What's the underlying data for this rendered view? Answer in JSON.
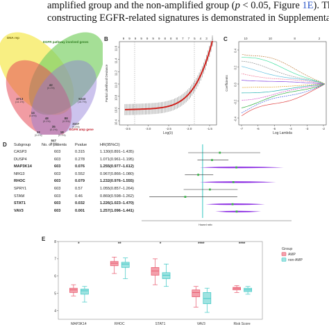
{
  "text": {
    "line1": "amplified group and the non-amplified group (",
    "line1_p": "p",
    "line1_mid": " < 0.05, Figure ",
    "line1_ref": "1E",
    "line1_end": "). The",
    "line2": "constructing EGFR-related signatures is demonstrated in Supplementar"
  },
  "panels": {
    "b": "B",
    "c": "C",
    "d": "D",
    "e": "E"
  },
  "venn": {
    "labels": {
      "top_left": "DNA rep",
      "top_right": "EGFR pathway involved genes",
      "bottom_right": "EGFR amp gene"
    },
    "numbers": [
      {
        "v": "42",
        "s": "(0.1%)",
        "x": 68,
        "y": 76
      },
      {
        "v": "4713",
        "s": "(14.1%)",
        "x": 22,
        "y": 96
      },
      {
        "v": "5243",
        "s": "(15.7%)",
        "x": 112,
        "y": 96
      },
      {
        "v": "14",
        "s": "(0.0%)",
        "x": 42,
        "y": 116
      },
      {
        "v": "48",
        "s": "(0.1%)",
        "x": 62,
        "y": 124
      },
      {
        "v": "88",
        "s": "(0.3%)",
        "x": 90,
        "y": 124
      },
      {
        "v": "35",
        "s": "(0.1%)",
        "x": 72,
        "y": 136
      },
      {
        "v": "3107",
        "s": "(9.3%)",
        "x": 104,
        "y": 132
      },
      {
        "v": "12",
        "s": "(0.0%)",
        "x": 50,
        "y": 144
      },
      {
        "v": "18",
        "s": "(0.1%)",
        "x": 84,
        "y": 144
      },
      {
        "v": "847",
        "s": "(2.5%)",
        "x": 72,
        "y": 156
      }
    ]
  },
  "panel_b": {
    "ylabel": "Partial Likelihood Deviance",
    "xlabel": "Log(λ)",
    "top_ticks": [
      "9",
      "9",
      "9",
      "9",
      "9",
      "9",
      "9",
      "8",
      "8",
      "8",
      "7",
      "7",
      "5",
      "4",
      "3",
      "1"
    ],
    "yticks": [
      "10.4",
      "10.6",
      "10.8",
      "11.0",
      "11.2",
      "11.4",
      "11.6"
    ],
    "xticks": [
      "-3.5",
      "-3.0",
      "-2.5",
      "-2.0",
      "-1.5"
    ]
  },
  "panel_c": {
    "ylabel": "Coefficients",
    "xlabel": "Log Lambda",
    "top_ticks": [
      "10",
      "10",
      "8",
      "2"
    ],
    "yticks": [
      "-0.4",
      "-0.2",
      "0.0",
      "0.2",
      "0.4"
    ],
    "xticks": [
      "-7",
      "-6",
      "-5",
      "-4",
      "-3",
      "-2"
    ]
  },
  "forest": {
    "headers": {
      "subgroup": "Subgroup",
      "n": "No. of patients",
      "p": "Pvalue",
      "hr": "HR(95%CI)"
    },
    "xlabel": "Hazard ratio",
    "rows": [
      {
        "gene": "CASP3",
        "n": "603",
        "p": "0.315",
        "hr": "1.130(0.891–1.435)",
        "bold": false
      },
      {
        "gene": "DUSP4",
        "n": "603",
        "p": "0.278",
        "hr": "1.071(0.961–1.195)",
        "bold": false
      },
      {
        "gene": "MAP3K14",
        "n": "603",
        "p": "0.076",
        "hr": "1.255(0.977–1.612)",
        "bold": true
      },
      {
        "gene": "NRG3",
        "n": "603",
        "p": "0.552",
        "hr": "0.967(0.866–1.080)",
        "bold": false
      },
      {
        "gene": "RHOC",
        "n": "603",
        "p": "0.079",
        "hr": "1.232(0.976–1.555)",
        "bold": true
      },
      {
        "gene": "SPRY1",
        "n": "603",
        "p": "0.57",
        "hr": "1.055(0.857–1.264)",
        "bold": false
      },
      {
        "gene": "STAM",
        "n": "603",
        "p": "0.46",
        "hr": "0.869(0.598–1.262)",
        "bold": false
      },
      {
        "gene": "STAT1",
        "n": "603",
        "p": "0.032",
        "hr": "1.226(1.023–1.470)",
        "bold": true
      },
      {
        "gene": "VAV3",
        "n": "603",
        "p": "0.001",
        "hr": "1.257(1.096–1.441)",
        "bold": true
      }
    ]
  },
  "chart_data": {
    "type": "box",
    "title": "",
    "xlabel": "",
    "ylabel": "",
    "ylim": [
      3.5,
      8
    ],
    "yticks": [
      4,
      5,
      6,
      7,
      8
    ],
    "categories": [
      "MAP3K14",
      "RHOC",
      "STAT1",
      "VAV3",
      "Risk Score"
    ],
    "significance": [
      "*",
      "**",
      "*",
      "****",
      "****"
    ],
    "legend": {
      "title": "Group",
      "position": "right"
    },
    "series": [
      {
        "name": "AMP",
        "color": "#e8566b",
        "fill": "#f3a0ab",
        "boxes": [
          {
            "min": 4.85,
            "q1": 5.05,
            "median": 5.2,
            "q3": 5.3,
            "max": 5.5
          },
          {
            "min": 6.15,
            "q1": 6.6,
            "median": 6.75,
            "q3": 6.85,
            "max": 7.1
          },
          {
            "min": 5.5,
            "q1": 6.05,
            "median": 6.3,
            "q3": 6.5,
            "max": 7.0
          },
          {
            "min": 4.2,
            "q1": 4.8,
            "median": 5.05,
            "q3": 5.2,
            "max": 5.4
          },
          {
            "min": 5.05,
            "q1": 5.2,
            "median": 5.3,
            "q3": 5.35,
            "max": 5.45
          }
        ]
      },
      {
        "name": "non-AMP",
        "color": "#3cc7c4",
        "fill": "#9fe3e1",
        "boxes": [
          {
            "min": 4.5,
            "q1": 4.95,
            "median": 5.15,
            "q3": 5.25,
            "max": 5.4
          },
          {
            "min": 5.85,
            "q1": 6.5,
            "median": 6.7,
            "q3": 6.8,
            "max": 7.05
          },
          {
            "min": 5.4,
            "q1": 5.85,
            "median": 6.05,
            "q3": 6.2,
            "max": 6.7
          },
          {
            "min": 3.9,
            "q1": 4.4,
            "median": 4.7,
            "q3": 5.05,
            "max": 5.3
          },
          {
            "min": 4.95,
            "q1": 5.1,
            "median": 5.2,
            "q3": 5.3,
            "max": 5.4
          }
        ]
      }
    ]
  }
}
